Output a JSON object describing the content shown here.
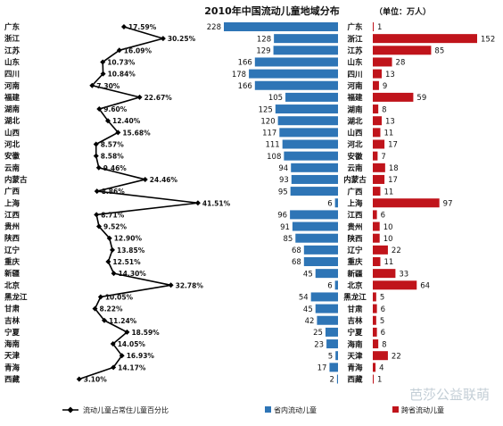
{
  "chart_data": {
    "type": "bar",
    "title": "2010年中国流动儿童地域分布",
    "unit": "（单位：万人）",
    "legend": {
      "line": "流动儿童占常住儿童百分比",
      "left_bar": "省内流动儿童",
      "right_bar": "跨省流动儿童"
    },
    "watermark": "芭莎公益联萌",
    "colors": {
      "left_bar": "#2E75B6",
      "right_bar": "#C0141B",
      "line": "#000000"
    },
    "percent_axis_range": [
      0,
      45
    ],
    "left_bar_range": [
      0,
      228
    ],
    "right_bar_range": [
      0,
      152
    ],
    "left_provinces": [
      "广东",
      "浙江",
      "江苏",
      "山东",
      "四川",
      "河南",
      "福建",
      "湖南",
      "湖北",
      "山西",
      "河北",
      "安徽",
      "云南",
      "内蒙古",
      "广西",
      "上海",
      "江西",
      "贵州",
      "陕西",
      "辽宁",
      "重庆",
      "新疆",
      "北京",
      "黑龙江",
      "甘肃",
      "吉林",
      "宁夏",
      "海南",
      "天津",
      "青海",
      "西藏"
    ],
    "percent_values": [
      17.59,
      30.25,
      16.09,
      10.73,
      10.84,
      7.3,
      22.67,
      9.6,
      12.4,
      15.68,
      8.57,
      8.58,
      9.46,
      24.46,
      8.86,
      41.51,
      8.71,
      9.52,
      12.9,
      13.85,
      12.51,
      14.3,
      32.78,
      10.05,
      8.22,
      11.24,
      18.59,
      14.05,
      16.93,
      14.17,
      3.1
    ],
    "percent_labels": [
      "17.59%",
      "30.25%",
      "16.09%",
      "10.73%",
      "10.84%",
      "7.30%",
      "22.67%",
      "9.60%",
      "12.40%",
      "15.68%",
      "8.57%",
      "8.58%",
      "9.46%",
      "24.46%",
      "8.86%",
      "41.51%",
      "8.71%",
      "9.52%",
      "12.90%",
      "13.85%",
      "12.51%",
      "14.30%",
      "32.78%",
      "10.05%",
      "8.22%",
      "11.24%",
      "18.59%",
      "14.05%",
      "16.93%",
      "14.17%",
      "3.10%"
    ],
    "bar_provinces": [
      "广东",
      "浙江",
      "江苏",
      "山东",
      "四川",
      "河南",
      "福建",
      "湖南",
      "湖北",
      "山西",
      "河北",
      "安徽",
      "云南",
      "内蒙古",
      "广西",
      "上海",
      "江西",
      "贵州",
      "陕西",
      "辽宁",
      "重庆",
      "新疆",
      "北京",
      "黑龙江",
      "甘肃",
      "吉林",
      "宁夏",
      "海南",
      "天津",
      "青海",
      "西藏"
    ],
    "left_bar_values": [
      228,
      128,
      129,
      166,
      178,
      166,
      105,
      125,
      120,
      117,
      111,
      108,
      94,
      93,
      95,
      6,
      96,
      91,
      85,
      68,
      68,
      45,
      6,
      54,
      45,
      42,
      25,
      23,
      5,
      17,
      2
    ],
    "right_bar_values": [
      1,
      152,
      85,
      28,
      13,
      9,
      59,
      8,
      13,
      11,
      17,
      7,
      18,
      17,
      11,
      97,
      6,
      10,
      10,
      22,
      11,
      33,
      64,
      5,
      6,
      5,
      6,
      8,
      22,
      4,
      1
    ]
  }
}
